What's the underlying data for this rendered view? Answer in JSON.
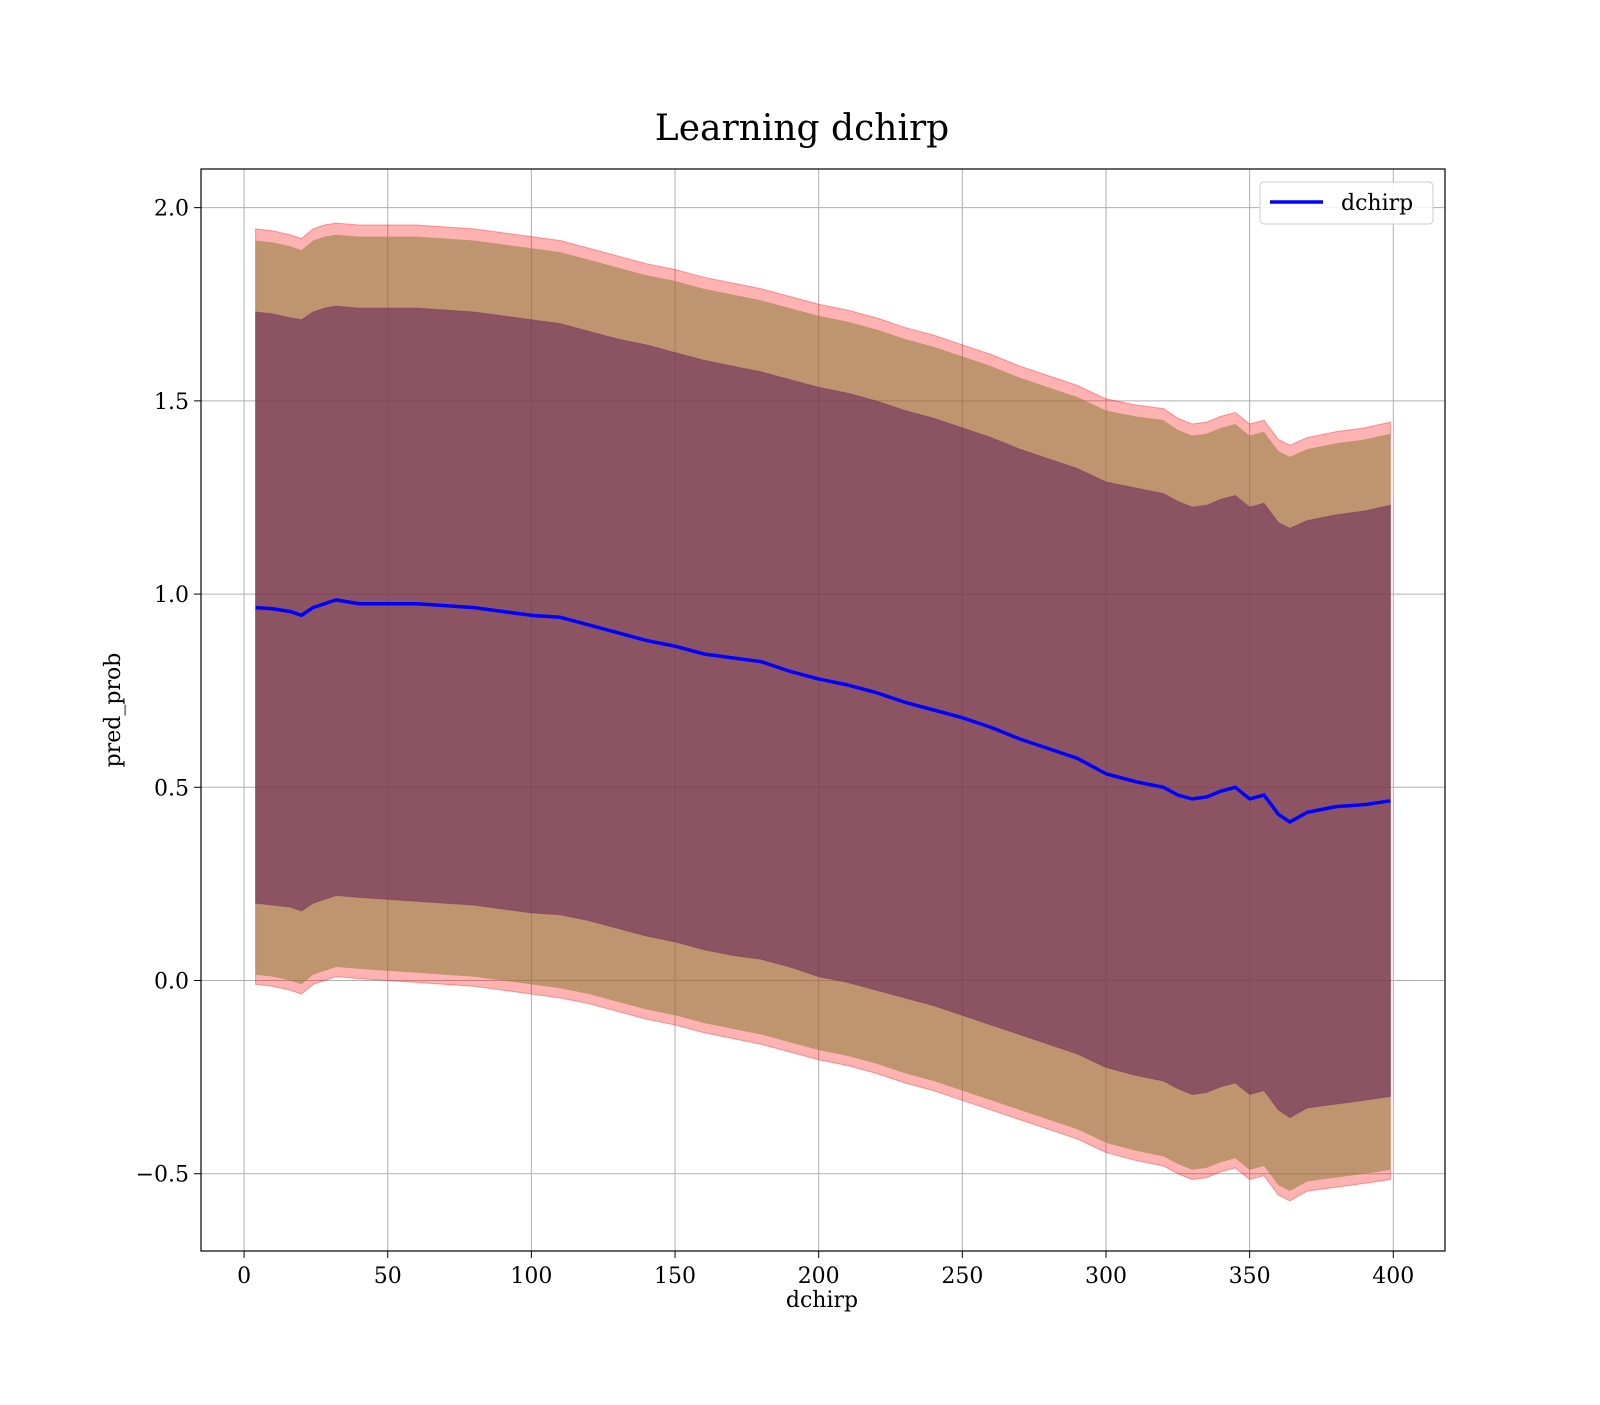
{
  "chart_data": {
    "type": "line",
    "title": "Learning dchirp",
    "xlabel": "dchirp",
    "ylabel": "pred_prob",
    "xlim": [
      -15,
      418
    ],
    "ylim": [
      -0.7,
      2.1
    ],
    "xticks": [
      0,
      50,
      100,
      150,
      200,
      250,
      300,
      350,
      400
    ],
    "xtick_labels": [
      "0",
      "50",
      "100",
      "150",
      "200",
      "250",
      "300",
      "350",
      "400"
    ],
    "yticks": [
      -0.5,
      0.0,
      0.5,
      1.0,
      1.5,
      2.0
    ],
    "ytick_labels": [
      "−0.5",
      "0.0",
      "0.5",
      "1.0",
      "1.5",
      "2.0"
    ],
    "grid": true,
    "legend": {
      "position": "upper right",
      "entries": [
        "dchirp"
      ]
    },
    "colors": {
      "line": "#0000ff",
      "outer_band": "#ff0000",
      "middle_band": "#8b7d3a",
      "inner_band": "#6b2a5a"
    },
    "series": [
      {
        "name": "dchirp",
        "x": [
          4,
          10,
          16,
          20,
          24,
          28,
          32,
          40,
          50,
          60,
          70,
          80,
          90,
          100,
          110,
          120,
          130,
          140,
          150,
          160,
          170,
          180,
          190,
          200,
          210,
          220,
          230,
          240,
          250,
          260,
          270,
          280,
          290,
          300,
          310,
          320,
          325,
          330,
          335,
          340,
          345,
          350,
          355,
          360,
          364,
          370,
          380,
          390,
          399
        ],
        "mean": [
          0.965,
          0.962,
          0.955,
          0.945,
          0.965,
          0.975,
          0.985,
          0.975,
          0.975,
          0.975,
          0.97,
          0.965,
          0.955,
          0.945,
          0.94,
          0.92,
          0.9,
          0.88,
          0.865,
          0.845,
          0.835,
          0.825,
          0.8,
          0.78,
          0.765,
          0.745,
          0.72,
          0.7,
          0.68,
          0.655,
          0.625,
          0.6,
          0.575,
          0.535,
          0.515,
          0.5,
          0.48,
          0.47,
          0.475,
          0.49,
          0.5,
          0.47,
          0.48,
          0.43,
          0.41,
          0.435,
          0.45,
          0.455,
          0.465
        ],
        "band_outer_upper": [
          1.945,
          1.94,
          1.93,
          1.92,
          1.945,
          1.955,
          1.96,
          1.955,
          1.955,
          1.955,
          1.95,
          1.945,
          1.935,
          1.925,
          1.915,
          1.895,
          1.875,
          1.855,
          1.84,
          1.82,
          1.805,
          1.79,
          1.77,
          1.75,
          1.735,
          1.715,
          1.69,
          1.67,
          1.645,
          1.62,
          1.59,
          1.565,
          1.54,
          1.505,
          1.49,
          1.48,
          1.455,
          1.44,
          1.445,
          1.46,
          1.47,
          1.44,
          1.45,
          1.4,
          1.385,
          1.405,
          1.42,
          1.43,
          1.445
        ],
        "band_middle_upper": [
          1.915,
          1.91,
          1.9,
          1.89,
          1.915,
          1.925,
          1.93,
          1.925,
          1.925,
          1.925,
          1.92,
          1.915,
          1.905,
          1.895,
          1.885,
          1.865,
          1.845,
          1.825,
          1.81,
          1.79,
          1.775,
          1.76,
          1.74,
          1.72,
          1.705,
          1.685,
          1.66,
          1.64,
          1.615,
          1.59,
          1.56,
          1.535,
          1.51,
          1.475,
          1.46,
          1.45,
          1.425,
          1.41,
          1.415,
          1.43,
          1.44,
          1.41,
          1.42,
          1.37,
          1.355,
          1.375,
          1.39,
          1.4,
          1.415
        ],
        "band_inner_upper": [
          1.73,
          1.725,
          1.715,
          1.71,
          1.73,
          1.74,
          1.745,
          1.74,
          1.74,
          1.74,
          1.735,
          1.73,
          1.72,
          1.71,
          1.7,
          1.68,
          1.66,
          1.645,
          1.625,
          1.605,
          1.59,
          1.575,
          1.555,
          1.535,
          1.52,
          1.5,
          1.475,
          1.455,
          1.43,
          1.405,
          1.375,
          1.35,
          1.325,
          1.29,
          1.275,
          1.26,
          1.24,
          1.225,
          1.23,
          1.245,
          1.255,
          1.225,
          1.235,
          1.185,
          1.17,
          1.19,
          1.205,
          1.215,
          1.23
        ],
        "band_inner_lower": [
          0.2,
          0.195,
          0.19,
          0.18,
          0.2,
          0.21,
          0.22,
          0.215,
          0.21,
          0.205,
          0.2,
          0.195,
          0.185,
          0.175,
          0.17,
          0.155,
          0.135,
          0.115,
          0.1,
          0.08,
          0.065,
          0.055,
          0.035,
          0.01,
          -0.005,
          -0.025,
          -0.045,
          -0.065,
          -0.09,
          -0.115,
          -0.14,
          -0.165,
          -0.19,
          -0.225,
          -0.245,
          -0.26,
          -0.28,
          -0.295,
          -0.29,
          -0.275,
          -0.265,
          -0.295,
          -0.285,
          -0.335,
          -0.355,
          -0.33,
          -0.32,
          -0.31,
          -0.3
        ],
        "band_middle_lower": [
          0.015,
          0.01,
          0.0,
          -0.01,
          0.015,
          0.025,
          0.035,
          0.03,
          0.025,
          0.02,
          0.015,
          0.01,
          0.0,
          -0.01,
          -0.02,
          -0.035,
          -0.055,
          -0.075,
          -0.09,
          -0.11,
          -0.125,
          -0.14,
          -0.16,
          -0.18,
          -0.195,
          -0.215,
          -0.24,
          -0.26,
          -0.285,
          -0.31,
          -0.335,
          -0.36,
          -0.385,
          -0.42,
          -0.44,
          -0.455,
          -0.475,
          -0.49,
          -0.485,
          -0.47,
          -0.46,
          -0.49,
          -0.48,
          -0.53,
          -0.545,
          -0.52,
          -0.51,
          -0.5,
          -0.49
        ],
        "band_outer_lower": [
          -0.01,
          -0.015,
          -0.025,
          -0.035,
          -0.01,
          0.0,
          0.01,
          0.005,
          0.0,
          -0.005,
          -0.01,
          -0.015,
          -0.025,
          -0.035,
          -0.045,
          -0.06,
          -0.08,
          -0.1,
          -0.115,
          -0.135,
          -0.15,
          -0.165,
          -0.185,
          -0.205,
          -0.22,
          -0.24,
          -0.265,
          -0.285,
          -0.31,
          -0.335,
          -0.36,
          -0.385,
          -0.41,
          -0.445,
          -0.465,
          -0.48,
          -0.5,
          -0.515,
          -0.51,
          -0.495,
          -0.485,
          -0.515,
          -0.505,
          -0.555,
          -0.57,
          -0.545,
          -0.535,
          -0.525,
          -0.515
        ]
      }
    ]
  }
}
